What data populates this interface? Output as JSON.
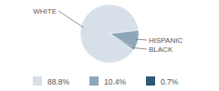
{
  "chart_data": {
    "type": "pie",
    "categories": [
      "WHITE",
      "HISPANIC",
      "BLACK"
    ],
    "values": [
      88.8,
      10.4,
      0.7
    ],
    "value_labels": [
      "88.8%",
      "10.4%",
      "0.7%"
    ],
    "colors": [
      "#d7e0e9",
      "#8ca6ba",
      "#2f5878"
    ],
    "legend": "bottom"
  }
}
